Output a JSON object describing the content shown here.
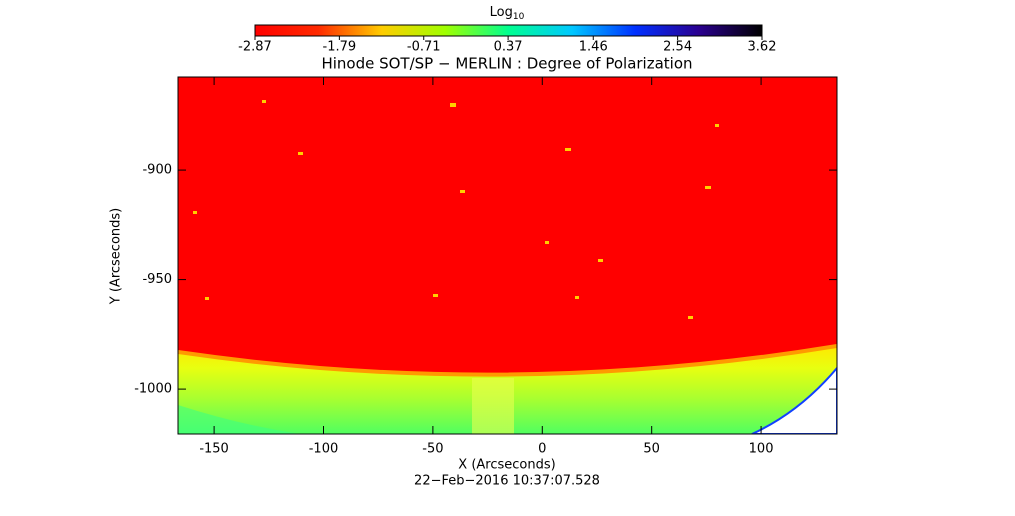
{
  "chart_data": {
    "type": "heatmap",
    "title": "Hinode SOT/SP − MERLIN : Degree of Polarization",
    "x_label": "X (Arcseconds)",
    "y_label": "Y (Arcseconds)",
    "date": "22−Feb−2016 10:37:07.528",
    "colorbar_title": "Log",
    "colorbar_title_subscript": "10",
    "clim": [
      -2.87,
      3.62
    ],
    "cticks": [
      -2.87,
      -1.79,
      -0.71,
      0.37,
      1.46,
      2.54,
      3.62
    ],
    "colormap": [
      "#ff0000",
      "#ff2a00",
      "#ffcc00",
      "#a0ff00",
      "#00ff90",
      "#00c8ff",
      "#0030ff",
      "#2a0090",
      "#000000"
    ],
    "xlim": [
      -166.5,
      134.7
    ],
    "xticks": [
      -150,
      -100,
      -50,
      0,
      50,
      100
    ],
    "ylim": [
      -1020.5,
      -857.5
    ],
    "yticks": [
      -1000,
      -950,
      -900
    ]
  }
}
